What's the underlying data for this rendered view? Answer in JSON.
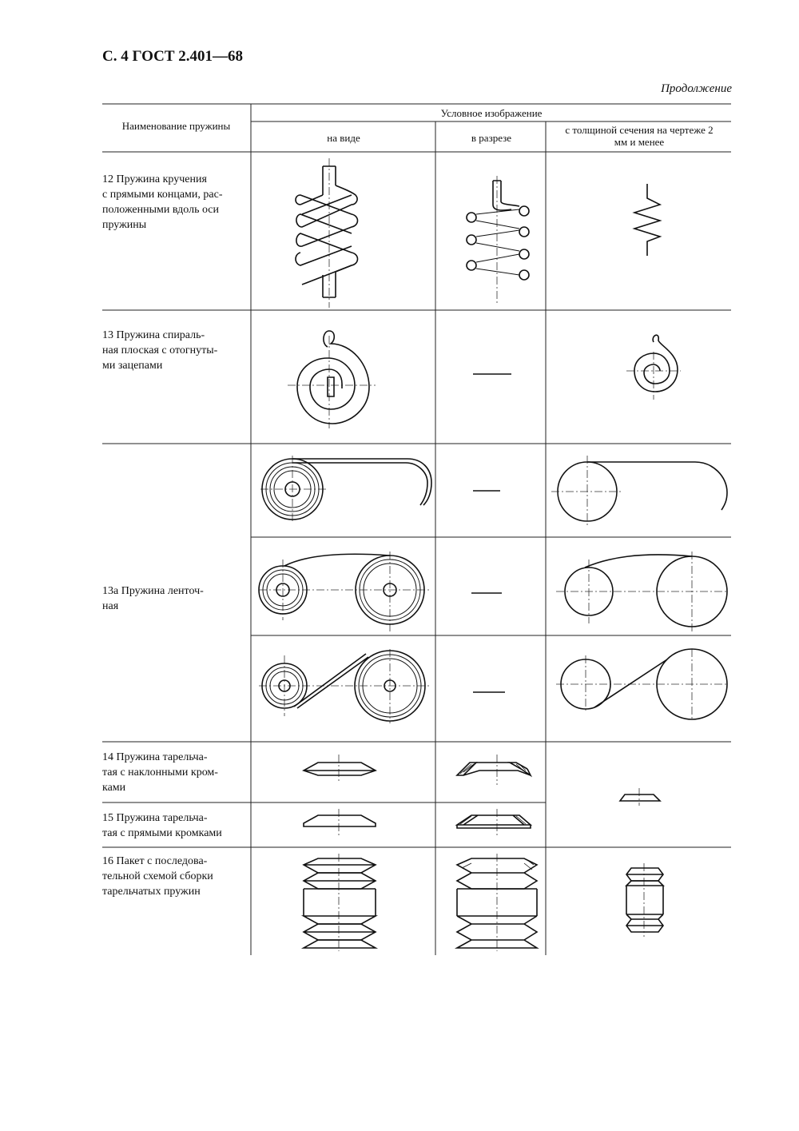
{
  "page": {
    "header": "С. 4 ГОСТ 2.401—68",
    "continuation": "Продолжение"
  },
  "table": {
    "col_name_header": "Наименование пружины",
    "col_group_header": "Условное изображение",
    "col_view_header": "на виде",
    "col_section_header": "в разрезе",
    "col_thin_header": "с толщиной сечения на чертеже 2 мм и менее",
    "rows": [
      {
        "name_lines": [
          "12  Пружина кручения",
          "с прямыми концами, рас-",
          "положенными вдоль оси",
          "пружины"
        ]
      },
      {
        "name_lines": [
          "13  Пружина спираль-",
          "ная плоская с отогнуты-",
          "ми зацепами"
        ]
      },
      {
        "name_lines": [
          "13а  Пружина ленточ-",
          "ная"
        ]
      },
      {
        "name_lines": [
          "14  Пружина тарельча-",
          "тая с наклонными кром-",
          "ками"
        ]
      },
      {
        "name_lines": [
          "15  Пружина тарельча-",
          "тая с прямыми кромками"
        ]
      },
      {
        "name_lines": [
          "16  Пакет с последова-",
          "тельной схемой сборки",
          "тарельчатых пружин"
        ]
      }
    ]
  },
  "icons": {
    "torsion_view": "torsion-spring-icon",
    "torsion_section": "torsion-spring-section-icon",
    "torsion_thin": "torsion-spring-thin-icon",
    "spiral_view": "spiral-spring-icon",
    "spiral_thin": "spiral-spring-thin-icon",
    "band_view": "band-spring-icon",
    "band_thin": "band-spring-thin-icon",
    "disc_view": "disc-spring-icon",
    "disc_section": "disc-spring-section-icon",
    "disc_thin": "disc-spring-thin-icon",
    "pack_view": "disc-pack-icon",
    "pack_section": "disc-pack-section-icon",
    "pack_thin": "disc-pack-thin-icon"
  }
}
